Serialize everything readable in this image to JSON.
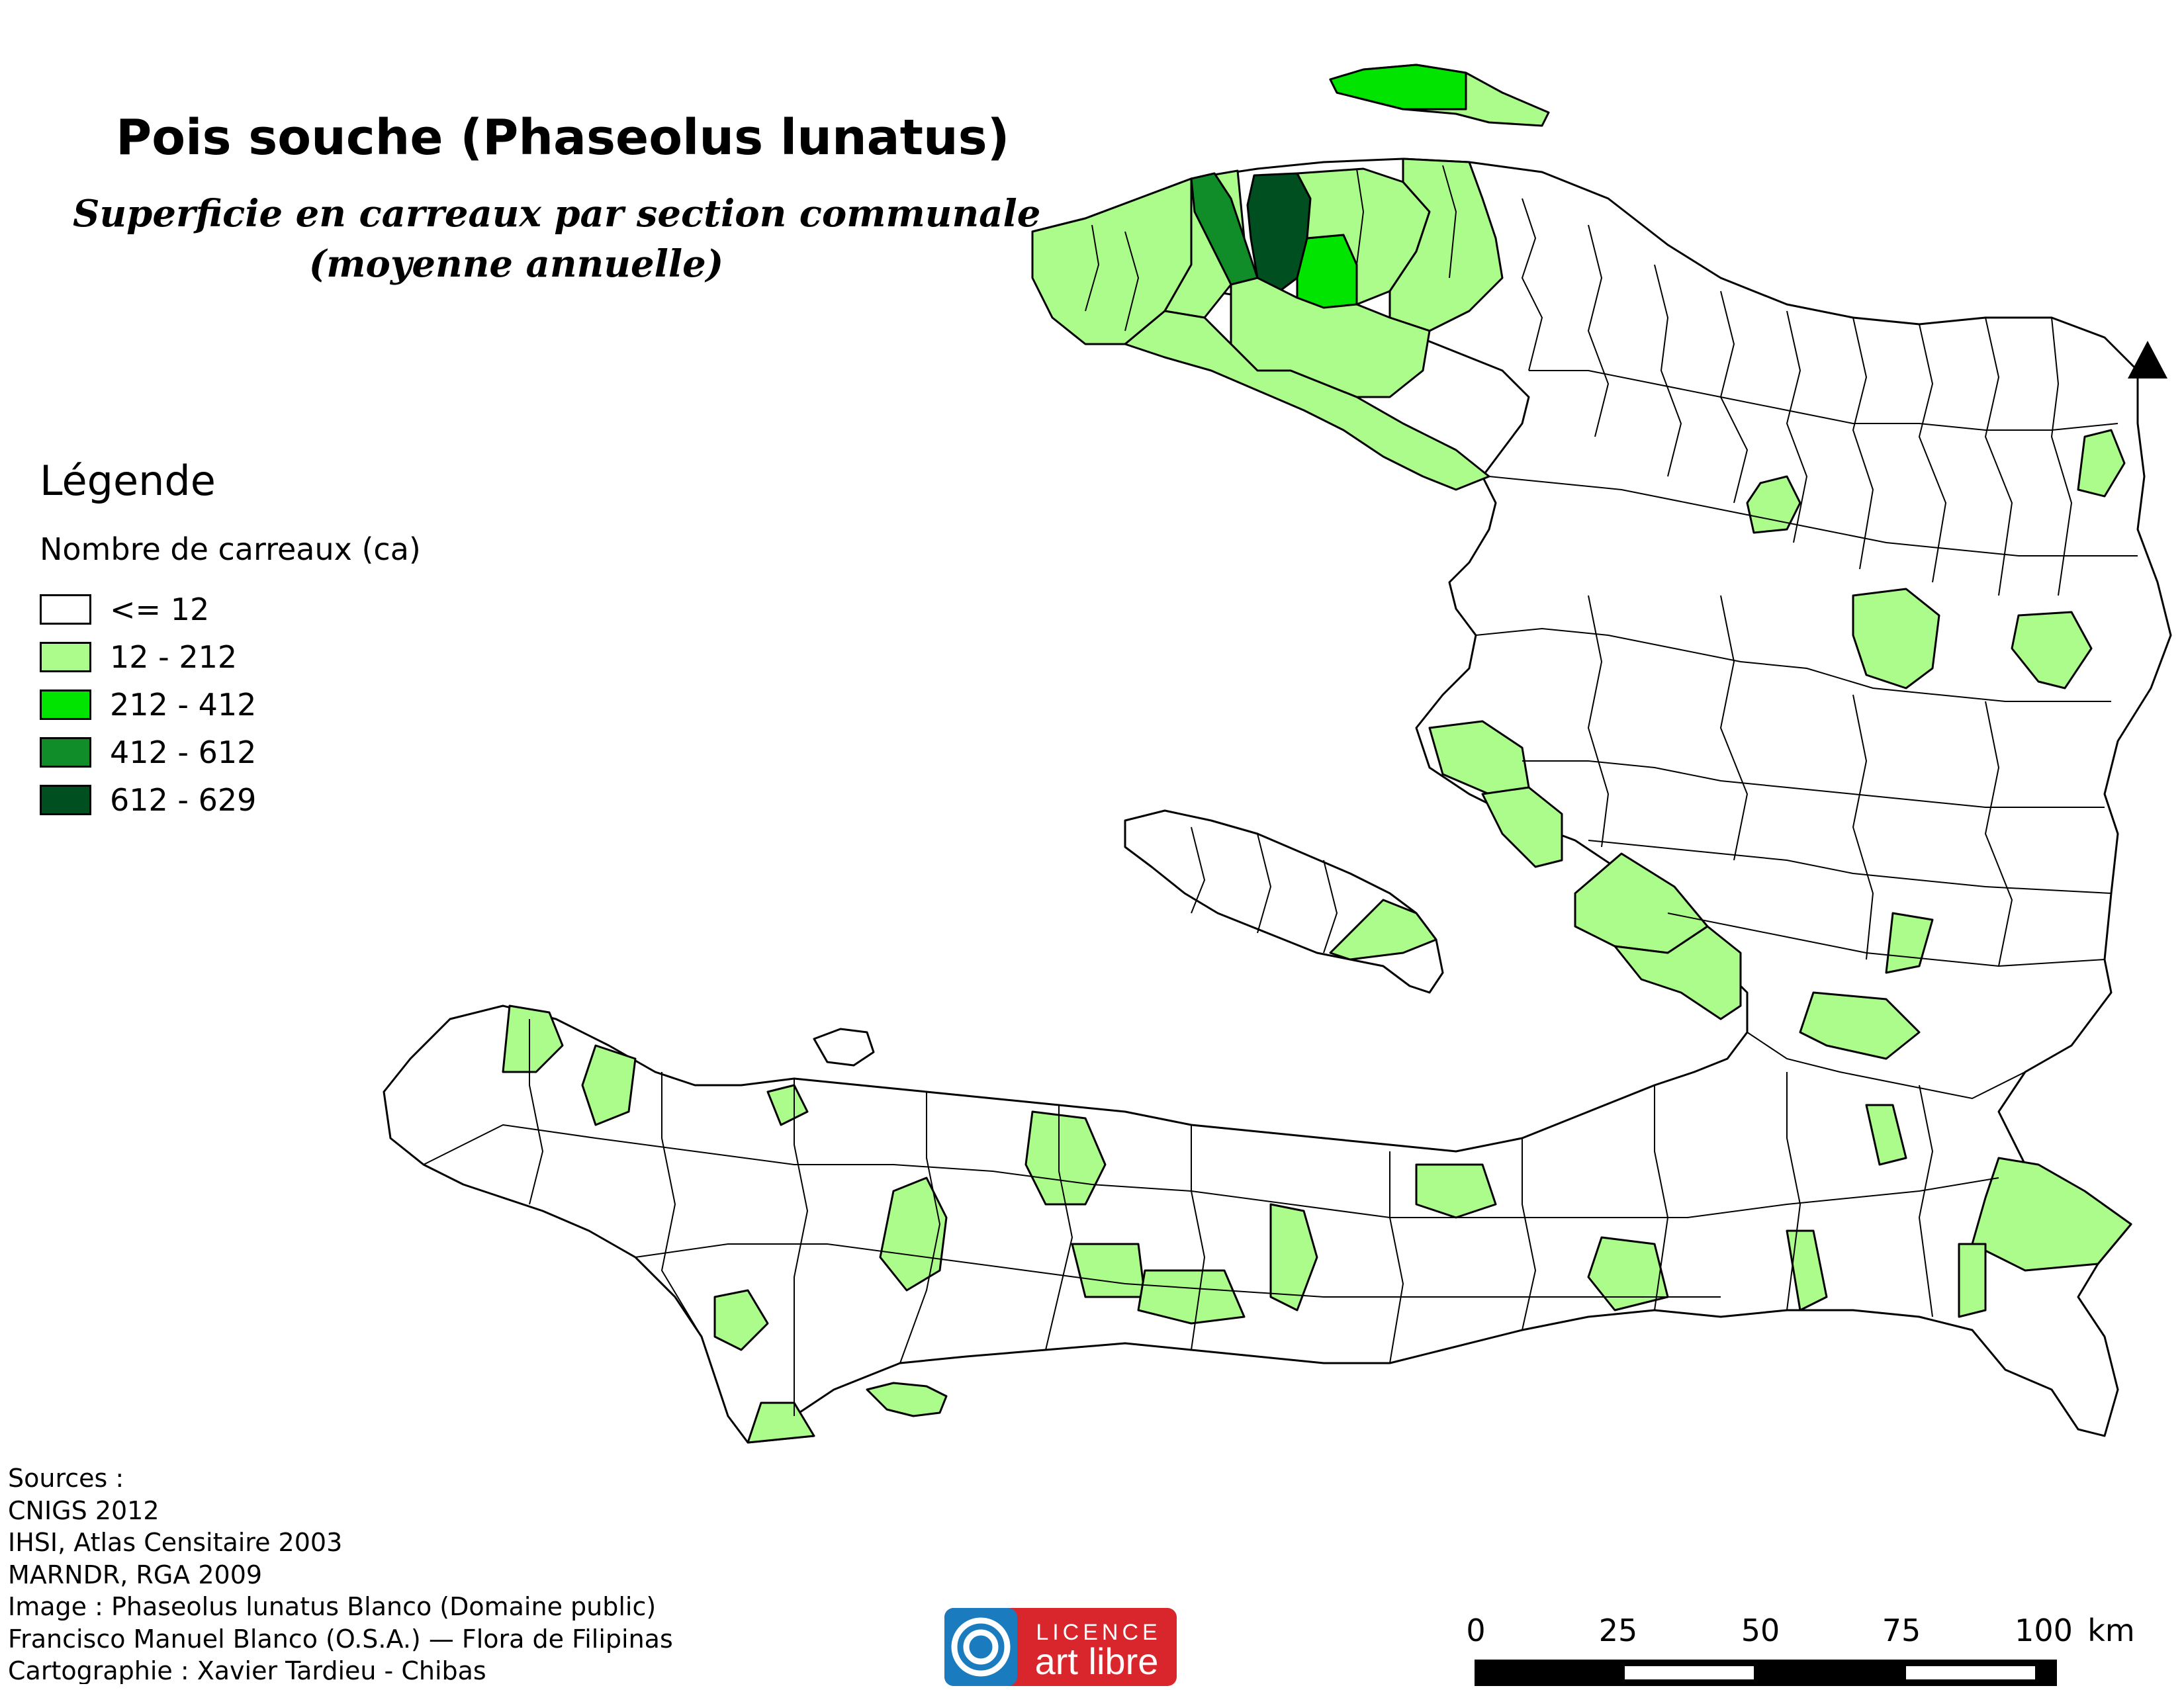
{
  "title": "Pois souche (Phaseolus lunatus)",
  "subtitle": {
    "line1": "Superficie en carreaux par section communale",
    "line2": "(moyenne annuelle)"
  },
  "legend": {
    "title": "Légende",
    "subtitle": "Nombre de carreaux (ca)",
    "classes": [
      {
        "label": "<= 12",
        "color": "#ffffff"
      },
      {
        "label": "12 - 212",
        "color": "#acfc8c"
      },
      {
        "label": "212 - 412",
        "color": "#00e400"
      },
      {
        "label": "412 - 612",
        "color": "#108c28"
      },
      {
        "label": "612 - 629",
        "color": "#004f20"
      }
    ]
  },
  "sources": [
    "Sources :",
    "CNIGS 2012",
    "IHSI, Atlas Censitaire 2003",
    "MARNDR, RGA 2009",
    "Image :  Phaseolus lunatus Blanco (Domaine public)",
    "Francisco Manuel Blanco (O.S.A.) — Flora de Filipinas",
    "Cartographie : Xavier Tardieu - Chibas"
  ],
  "license": {
    "line1": "LICENCE",
    "line2": "art libre",
    "color": "#d9262d",
    "icon_color": "#1a7bbf"
  },
  "scale": {
    "labels": [
      "0",
      "25",
      "50",
      "75",
      "100"
    ],
    "unit": "km"
  },
  "map": {
    "north_arrow": "north-arrow-icon",
    "outline_color": "#000000"
  }
}
